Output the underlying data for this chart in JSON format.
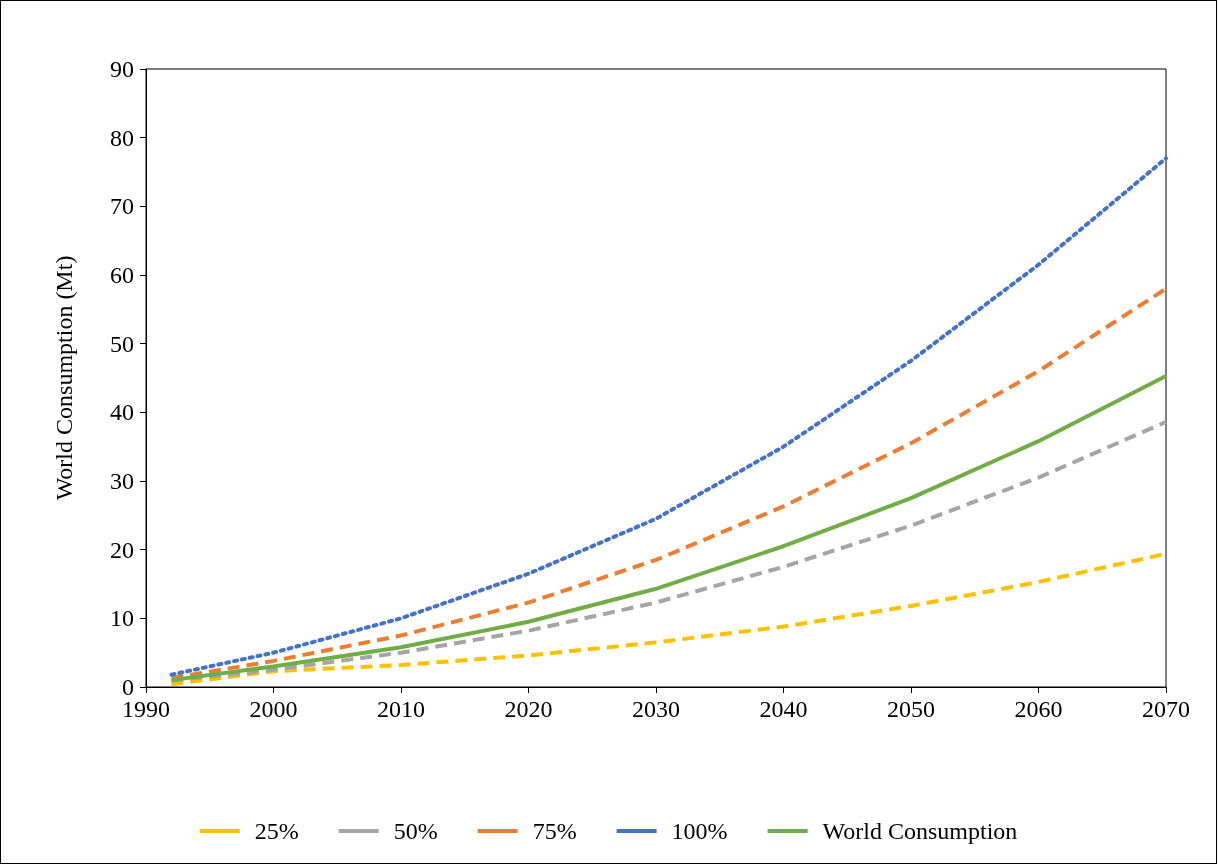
{
  "chart_data": {
    "type": "line",
    "ylabel": "World Consumption (Mt)",
    "x": [
      1992,
      2000,
      2010,
      2020,
      2030,
      2040,
      2050,
      2060,
      2070
    ],
    "xlim": [
      1990,
      2070
    ],
    "xticks": [
      1990,
      2000,
      2010,
      2020,
      2030,
      2040,
      2050,
      2060,
      2070
    ],
    "ylim": [
      0,
      90
    ],
    "yticks": [
      0,
      10,
      20,
      30,
      40,
      50,
      60,
      70,
      80,
      90
    ],
    "grid": false,
    "legend": "bottom",
    "marker": "none",
    "series": [
      {
        "name": "25%",
        "color": "#ffc000",
        "line_style": "dashed",
        "values": [
          0.4,
          2.3,
          3.2,
          4.6,
          6.5,
          8.8,
          11.8,
          15.3,
          19.4
        ]
      },
      {
        "name": "50%",
        "color": "#a5a5a5",
        "line_style": "dashed",
        "values": [
          0.9,
          2.5,
          5,
          8.2,
          12.3,
          17.5,
          23.5,
          30.5,
          38.6
        ]
      },
      {
        "name": "75%",
        "color": "#ed7d31",
        "line_style": "dashed",
        "values": [
          1.3,
          3.8,
          7.5,
          12.3,
          18.5,
          26.3,
          35.5,
          46,
          58
        ]
      },
      {
        "name": "100%",
        "color": "#4472c4",
        "line_style": "dotted",
        "values": [
          1.8,
          5,
          10,
          16.5,
          24.5,
          35,
          47.5,
          61.5,
          77
        ]
      },
      {
        "name": "World Consumption",
        "color": "#70ad47",
        "line_style": "solid",
        "values": [
          1,
          3,
          5.8,
          9.5,
          14.3,
          20.5,
          27.5,
          35.8,
          45.3
        ]
      }
    ]
  }
}
